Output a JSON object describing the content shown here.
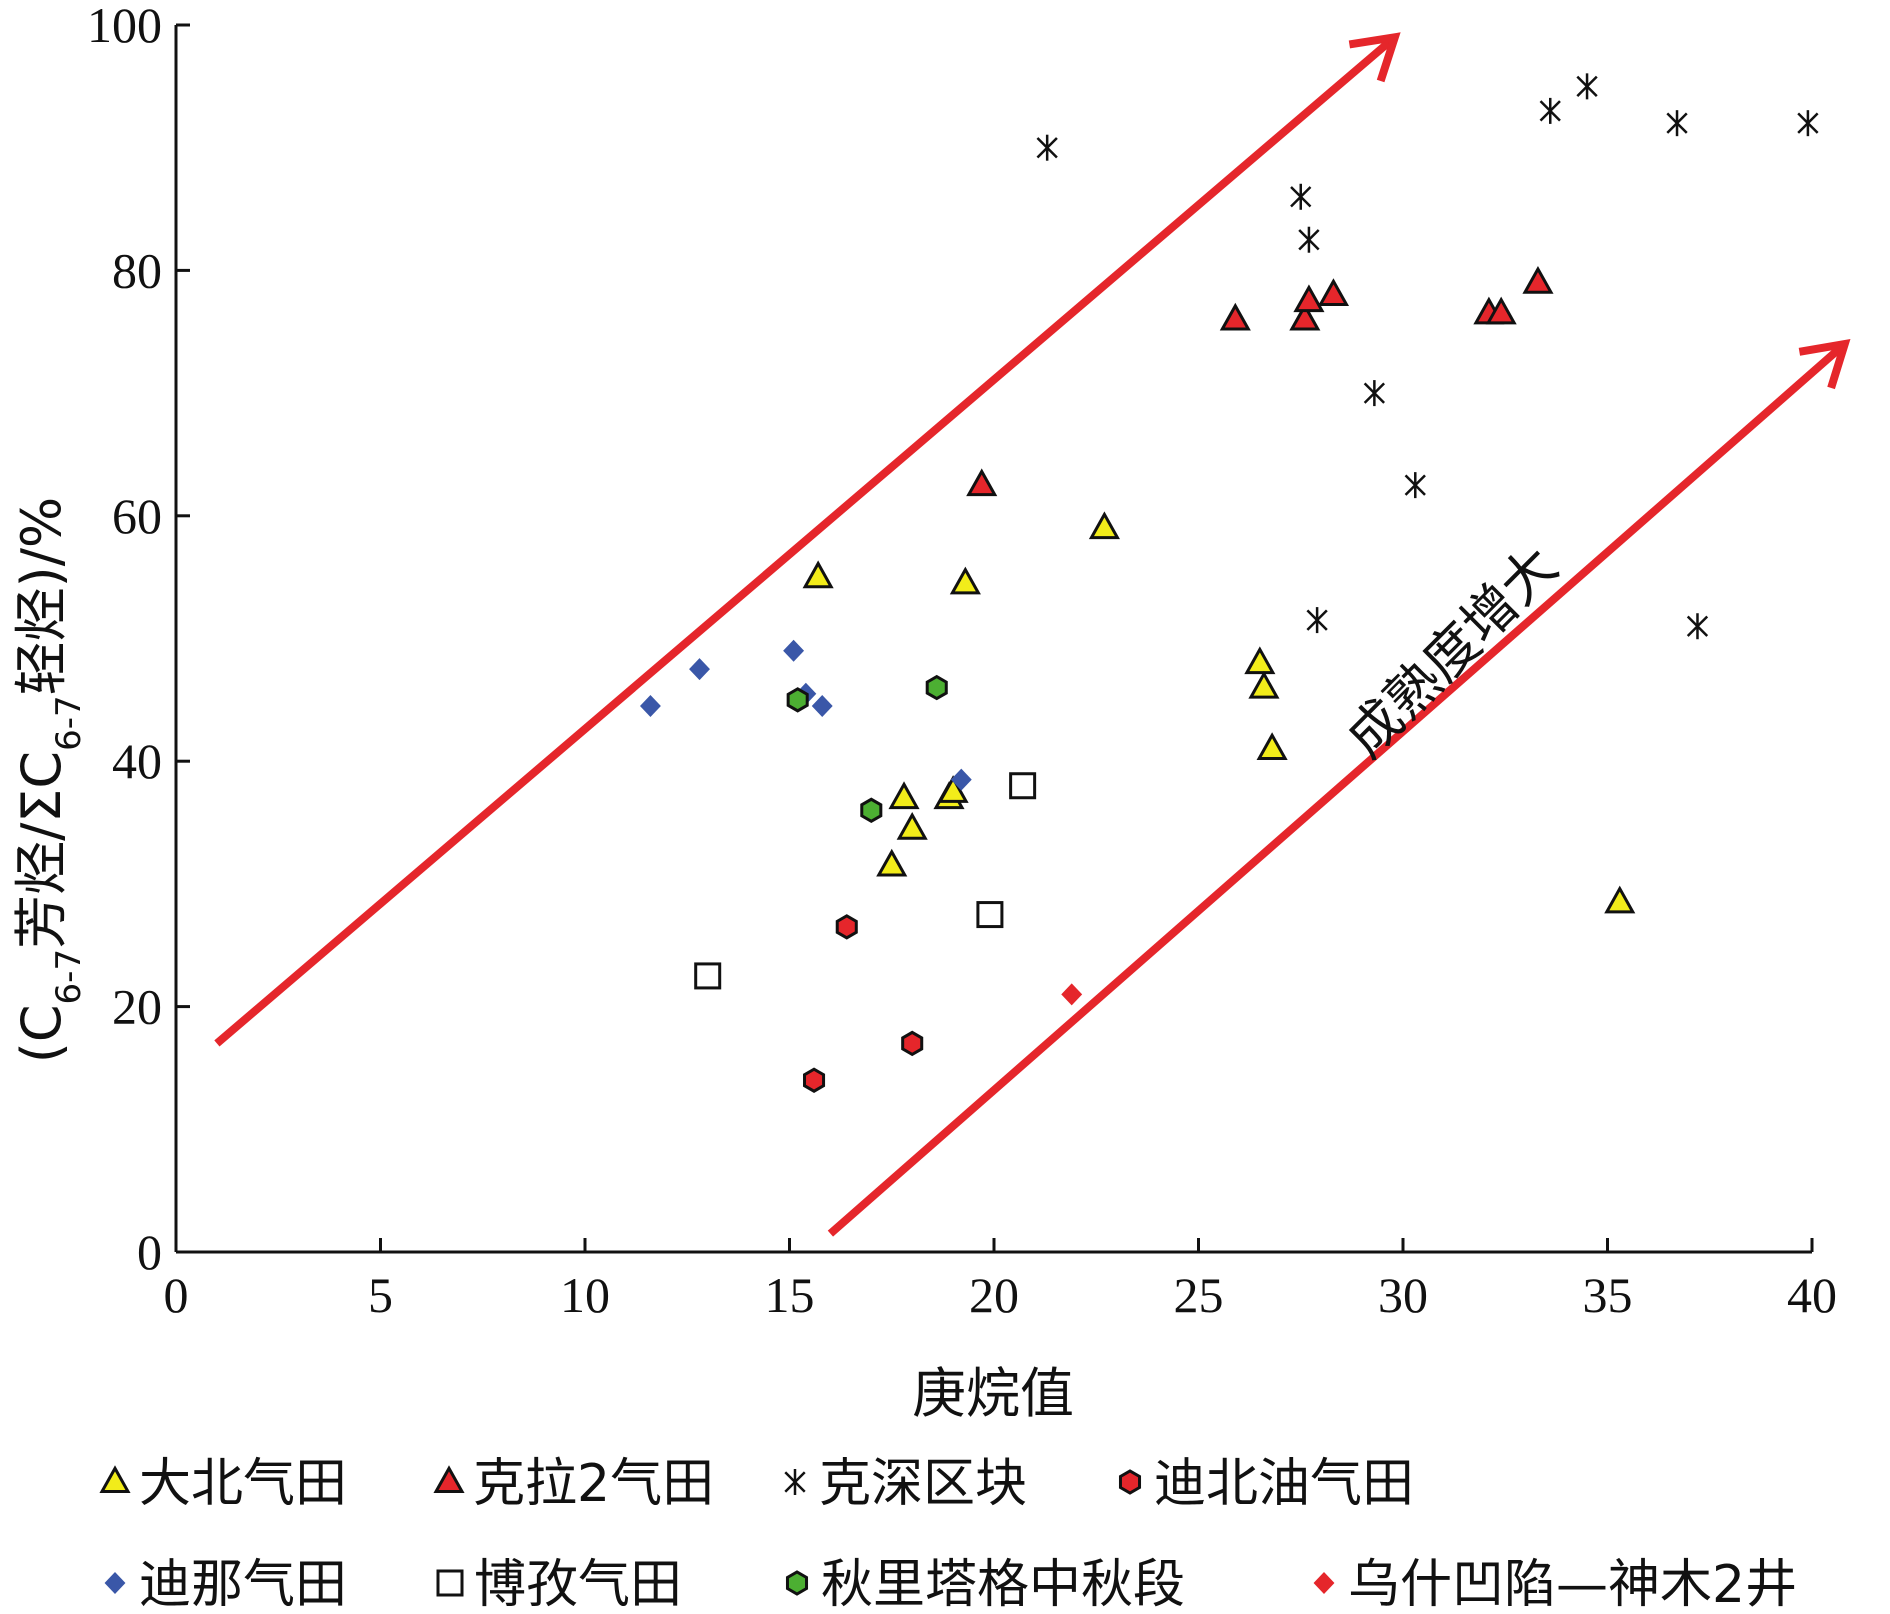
{
  "chart_data": {
    "type": "scatter",
    "title": "",
    "xlabel": "庚烷值",
    "ylabel": "(C6-7芳烃/ΣC6-7轻烃)/%",
    "ylabel_parts": {
      "pre": "(C",
      "sub1": "6-7",
      "mid": "芳烃/ΣC",
      "sub2": "6-7",
      "post": "轻烃)/%"
    },
    "xlim": [
      0,
      40
    ],
    "ylim": [
      0,
      100
    ],
    "x_ticks": [
      0,
      5,
      10,
      15,
      20,
      25,
      30,
      35,
      40
    ],
    "y_ticks": [
      0,
      20,
      40,
      60,
      80,
      100
    ],
    "grid": false,
    "legend_position": "bottom",
    "annotation": "成熟度增大",
    "arrows": [
      {
        "from": [
          1,
          17
        ],
        "to": [
          29.8,
          99
        ]
      },
      {
        "from": [
          16,
          1.5
        ],
        "to": [
          40.8,
          74
        ]
      }
    ],
    "arrow_color": "#e5262b",
    "series": [
      {
        "name": "大北气田",
        "marker": "triangle",
        "color": "#f2ec1a",
        "x": [
          15.7,
          19.3,
          22.7,
          17.8,
          18.0,
          17.5,
          18.9,
          19.0,
          26.5,
          26.6,
          26.8,
          35.3
        ],
        "y": [
          55,
          54.5,
          59,
          37,
          34.5,
          31.5,
          37,
          37.5,
          48,
          46,
          41,
          28.5
        ]
      },
      {
        "name": "克拉2气田",
        "marker": "triangle",
        "color": "#e5262b",
        "x": [
          19.7,
          25.9,
          27.6,
          27.7,
          28.3,
          32.1,
          32.4,
          33.3
        ],
        "y": [
          62.5,
          76,
          76,
          77.5,
          78,
          76.5,
          76.5,
          79
        ]
      },
      {
        "name": "克深区块",
        "marker": "asterisk",
        "color": "#111111",
        "x": [
          21.3,
          27.5,
          27.7,
          27.9,
          29.3,
          30.3,
          33.6,
          34.5,
          36.7,
          37.2,
          39.9
        ],
        "y": [
          90,
          86,
          82.5,
          51.5,
          70,
          62.5,
          93,
          95,
          92,
          51,
          92
        ]
      },
      {
        "name": "迪北油气田",
        "marker": "hexagon",
        "color": "#e5262b",
        "x": [
          15.6,
          16.4,
          18.0
        ],
        "y": [
          14,
          26.5,
          17
        ]
      },
      {
        "name": "迪那气田",
        "marker": "diamond",
        "color": "#3a57a8",
        "x": [
          11.6,
          12.8,
          15.1,
          15.4,
          15.8,
          19.2
        ],
        "y": [
          44.5,
          47.5,
          49,
          45.5,
          44.5,
          38.5
        ]
      },
      {
        "name": "博孜气田",
        "marker": "square",
        "color": "#ffffff",
        "x": [
          13.0,
          19.9,
          20.7
        ],
        "y": [
          22.5,
          27.5,
          38
        ]
      },
      {
        "name": "秋里塔格中秋段",
        "marker": "hexagon",
        "color": "#4caf32",
        "x": [
          15.2,
          17.0,
          18.6
        ],
        "y": [
          45,
          36,
          46
        ]
      },
      {
        "name": "乌什凹陷—神木2井",
        "marker": "diamond",
        "color": "#e5262b",
        "x": [
          21.9
        ],
        "y": [
          21
        ]
      }
    ]
  }
}
